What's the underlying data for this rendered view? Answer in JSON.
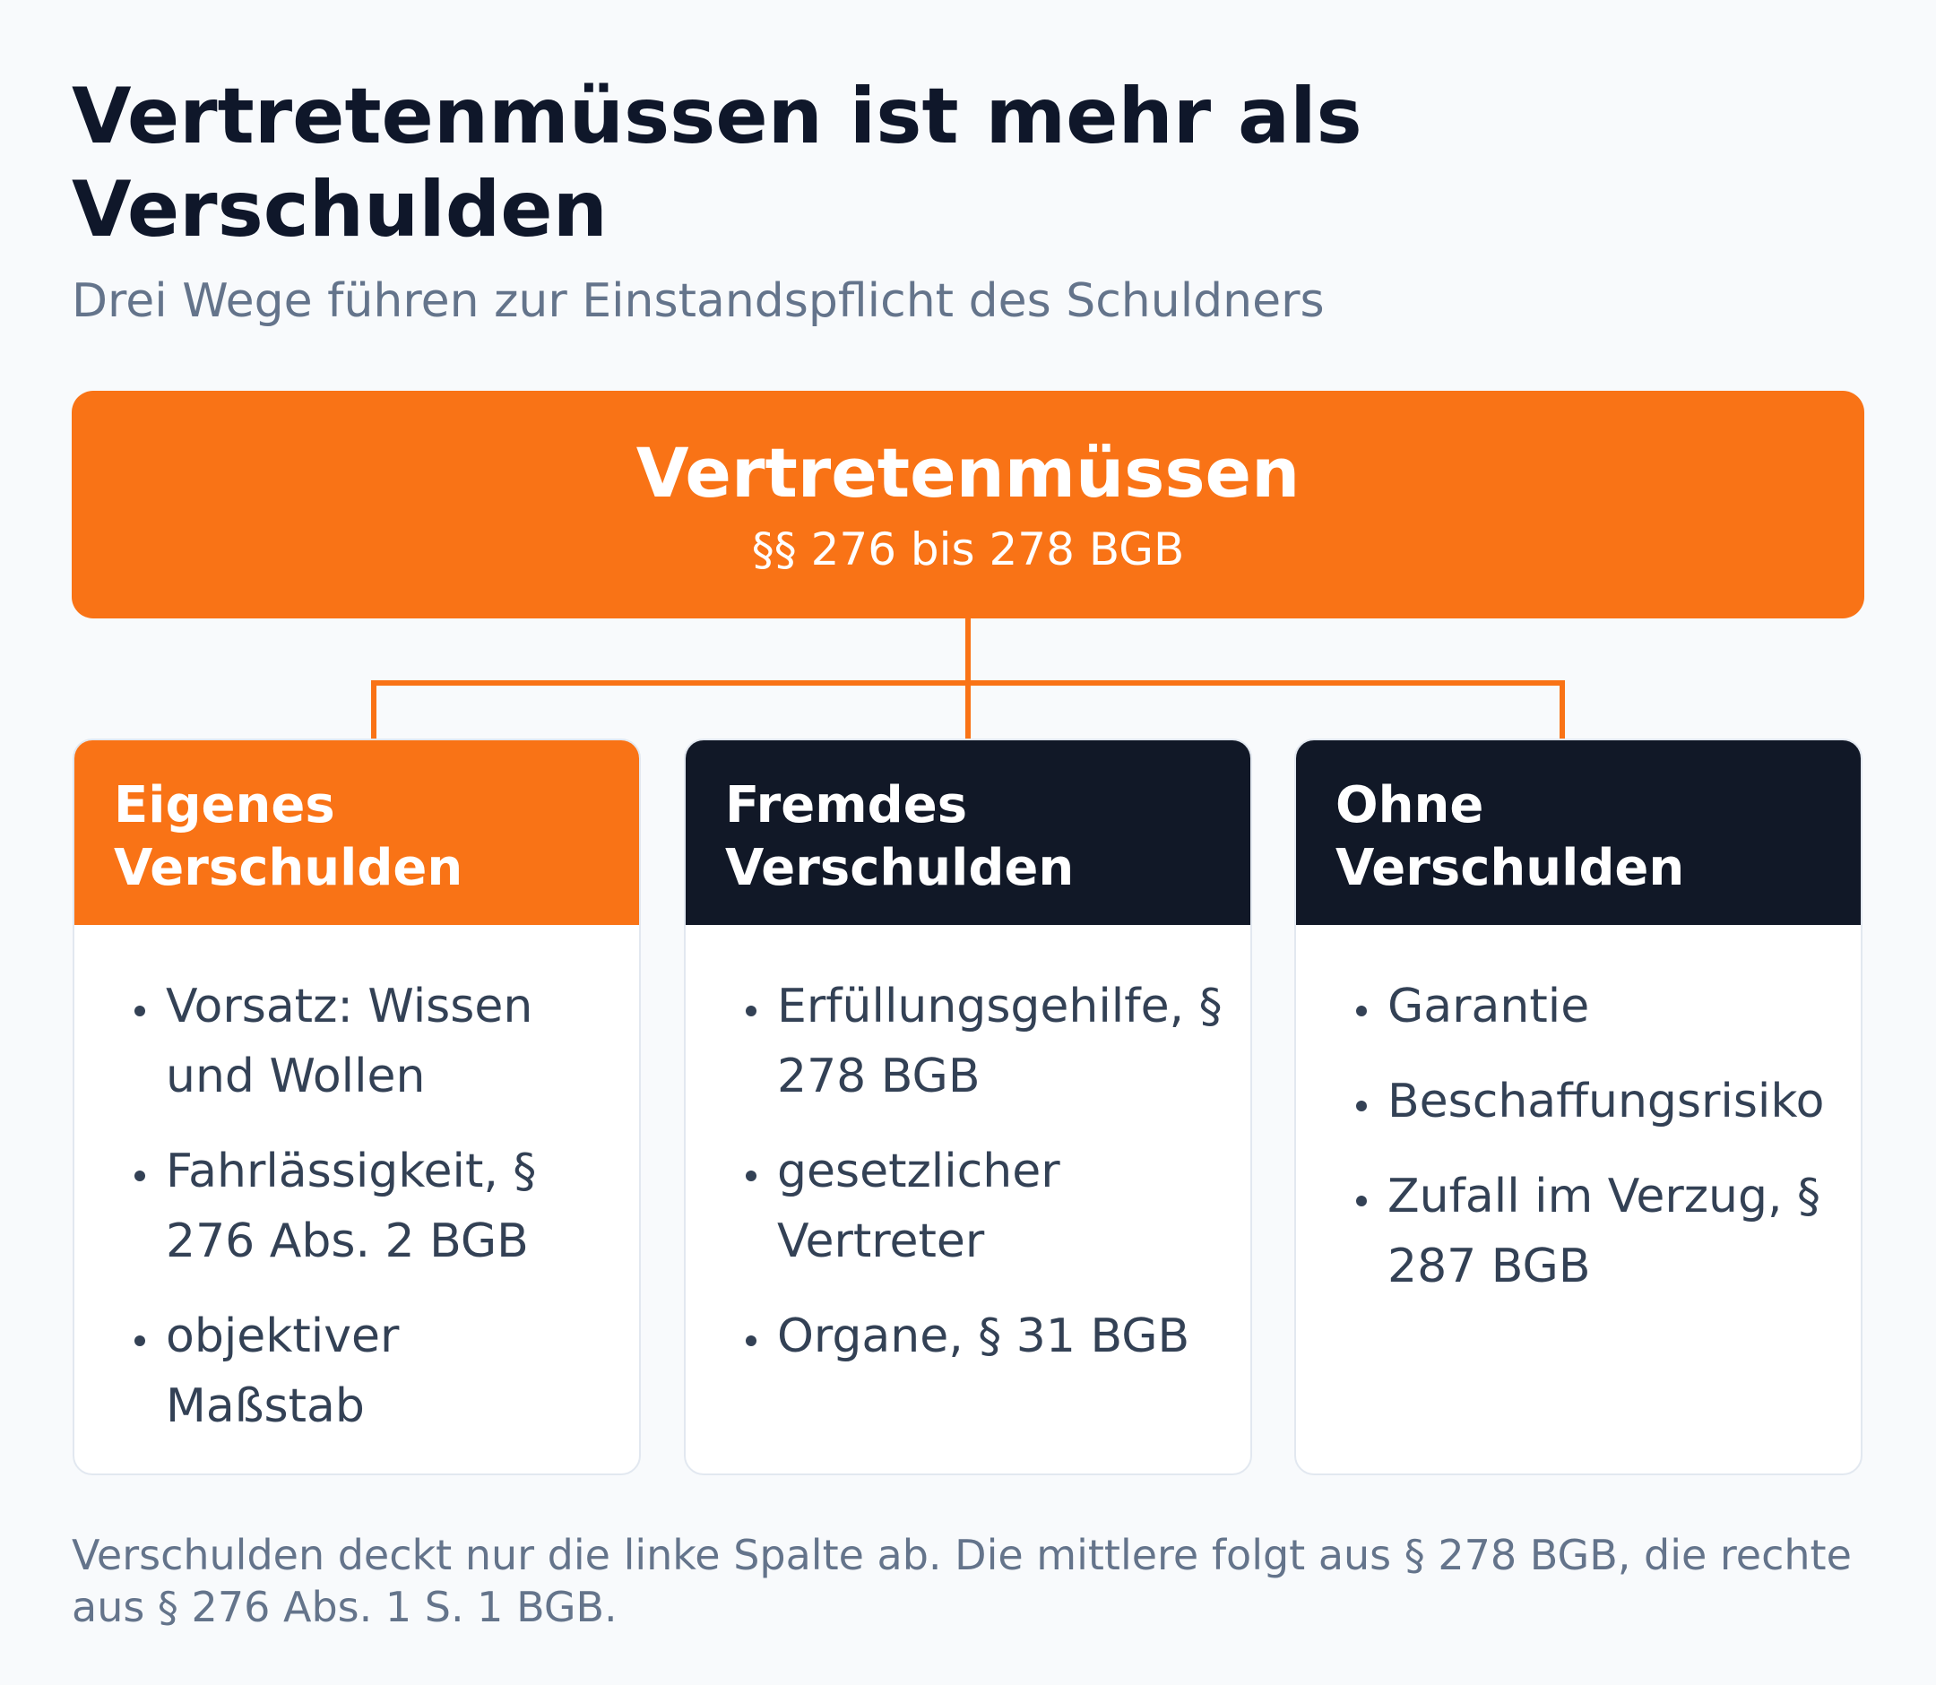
{
  "header": {
    "title": "Vertretenmüssen ist mehr als Verschulden",
    "subtitle": "Drei Wege führen zur Einstandspflicht des Schuldners"
  },
  "root": {
    "title": "Vertretenmüssen",
    "subtitle": "§§ 276 bis 278 BGB",
    "color": "#f97316"
  },
  "columns": [
    {
      "title": "Eigenes\nVerschulden",
      "color": "#f97316",
      "items": [
        "Vorsatz: Wissen und Wollen",
        "Fahrlässigkeit, § 276 Abs. 2 BGB",
        "objektiver Maßstab"
      ]
    },
    {
      "title": "Fremdes\nVerschulden",
      "color": "#111827",
      "items": [
        "Erfüllungsgehilfe, § 278 BGB",
        "gesetzlicher Vertreter",
        "Organe, § 31 BGB"
      ]
    },
    {
      "title": "Ohne\nVerschulden",
      "color": "#111827",
      "items": [
        "Garantie",
        "Beschaffungsrisiko",
        "Zufall im Verzug, § 287 BGB"
      ]
    }
  ],
  "footnote": "Verschulden deckt nur die linke Spalte ab. Die mittlere folgt aus § 278 BGB, die rechte aus § 276 Abs. 1 S. 1 BGB."
}
